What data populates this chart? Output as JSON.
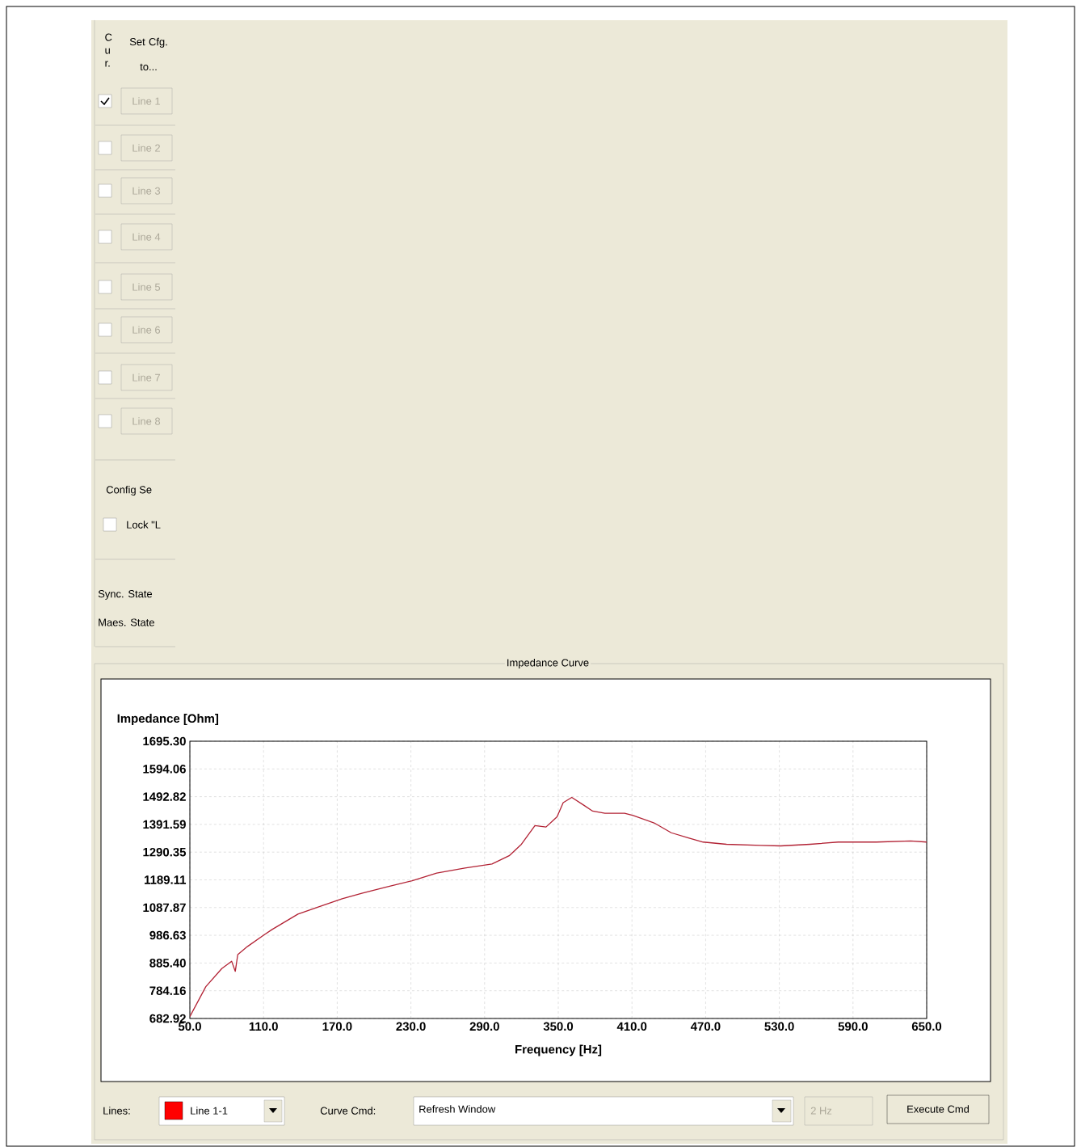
{
  "chart_data": {
    "type": "line",
    "title": "Impedance Curve",
    "xlabel": "Frequency [Hz]",
    "ylabel": "Impedance [Ohm]",
    "x": [
      50,
      63,
      76,
      84,
      87,
      89,
      97,
      110,
      117,
      138,
      154,
      174,
      190,
      210,
      231,
      251,
      274,
      296,
      310,
      320,
      331,
      340,
      349,
      354,
      361,
      371,
      378,
      388,
      404,
      411,
      428,
      442,
      456,
      468,
      487,
      515,
      531,
      555,
      578,
      609,
      637,
      650
    ],
    "series": [
      {
        "color": "#b22234",
        "values": [
          690,
          799,
          865,
          892,
          855,
          916,
          946,
          987,
          1008,
          1064,
          1089,
          1120,
          1140,
          1163,
          1186,
          1214,
          1232,
          1247,
          1277,
          1319,
          1387,
          1382,
          1419,
          1471,
          1490,
          1461,
          1440,
          1432,
          1432,
          1424,
          1397,
          1361,
          1342,
          1327,
          1319,
          1315,
          1313,
          1319,
          1327,
          1327,
          1331,
          1327
        ]
      }
    ],
    "xlim": [
      50,
      650
    ],
    "ylim": [
      682.92,
      1695.3
    ],
    "xticks": [
      {
        "value": 50,
        "label": "50.0"
      },
      {
        "value": 110,
        "label": "110.0"
      },
      {
        "value": 170,
        "label": "170.0"
      },
      {
        "value": 230,
        "label": "230.0"
      },
      {
        "value": 290,
        "label": "290.0"
      },
      {
        "value": 350,
        "label": "350.0"
      },
      {
        "value": 410,
        "label": "410.0"
      },
      {
        "value": 470,
        "label": "470.0"
      },
      {
        "value": 530,
        "label": "530.0"
      },
      {
        "value": 590,
        "label": "590.0"
      },
      {
        "value": 650,
        "label": "650.0"
      }
    ],
    "yticks": [
      {
        "value": 682.92,
        "label": "682.92"
      },
      {
        "value": 784.16,
        "label": "784.16"
      },
      {
        "value": 885.4,
        "label": "885.40"
      },
      {
        "value": 986.63,
        "label": "986.63"
      },
      {
        "value": 1087.87,
        "label": "1087.87"
      },
      {
        "value": 1189.11,
        "label": "1189.11"
      },
      {
        "value": 1290.35,
        "label": "1290.35"
      },
      {
        "value": 1391.59,
        "label": "1391.59"
      },
      {
        "value": 1492.82,
        "label": "1492.82"
      },
      {
        "value": 1594.06,
        "label": "1594.06"
      },
      {
        "value": 1695.3,
        "label": "1695.30"
      }
    ],
    "grid": true,
    "annotations": [
      "C u r.",
      "Set Cfg. to...",
      "Line 1",
      "Line 2",
      "Line 3",
      "Line 4",
      "Line 5",
      "Line 6",
      "Line 7",
      "Line 8",
      "Config Se",
      "Lock \"L",
      "Sync. State",
      "Maes. State",
      "Lines:",
      "Line 1-1",
      "Curve Cmd:",
      "Refresh Window",
      "2 Hz",
      "Execute Cmd"
    ]
  }
}
